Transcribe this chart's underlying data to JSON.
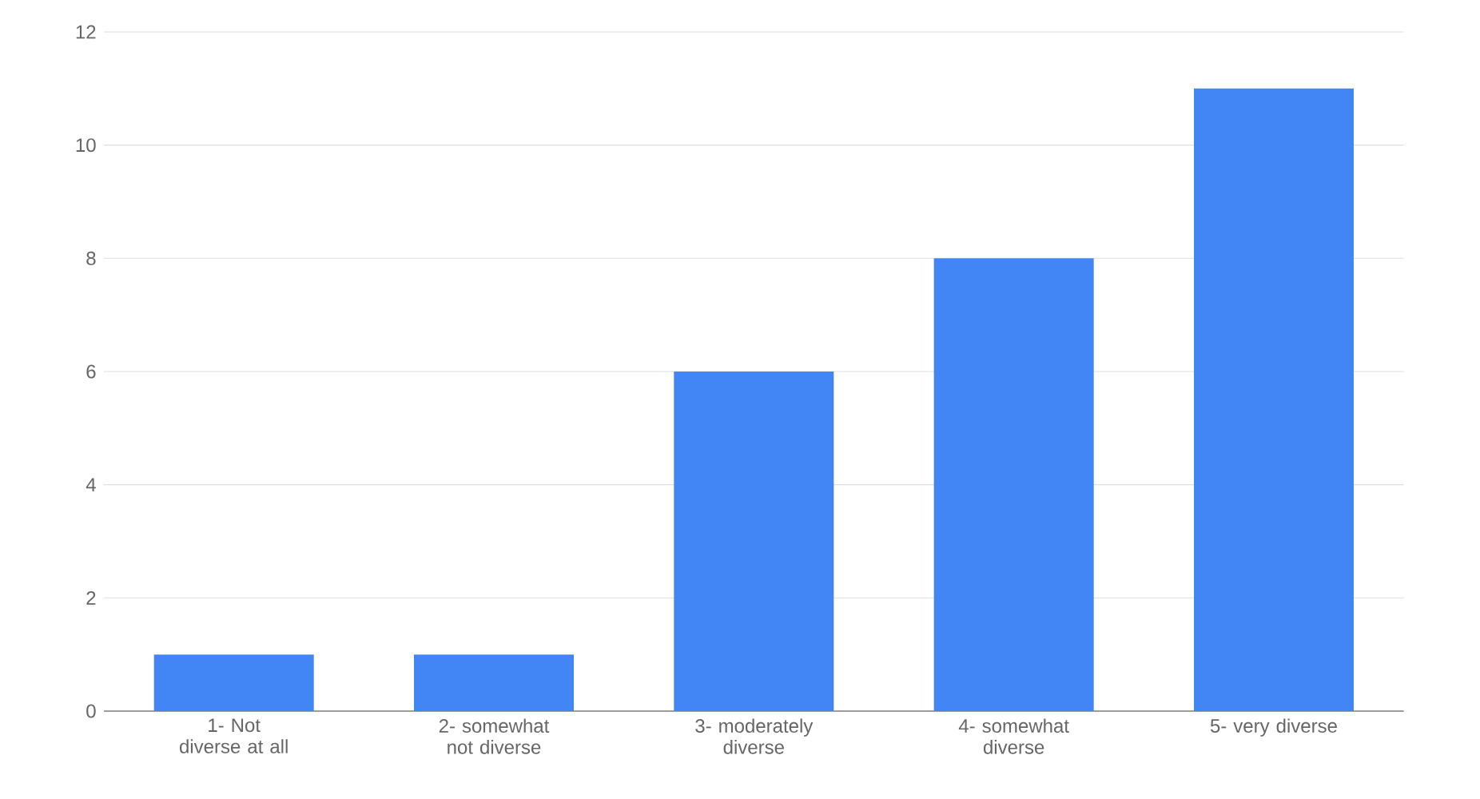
{
  "chart_data": {
    "type": "bar",
    "categories": [
      "1- Not diverse at all",
      "2- somewhat not diverse",
      "3- moderately diverse",
      "4- somewhat diverse",
      "5- very diverse"
    ],
    "values": [
      1,
      1,
      6,
      8,
      11
    ],
    "color": "#4285f4",
    "ylim": [
      0,
      12
    ],
    "yticks": [
      0,
      2,
      4,
      6,
      8,
      10,
      12
    ],
    "grid": "y"
  }
}
